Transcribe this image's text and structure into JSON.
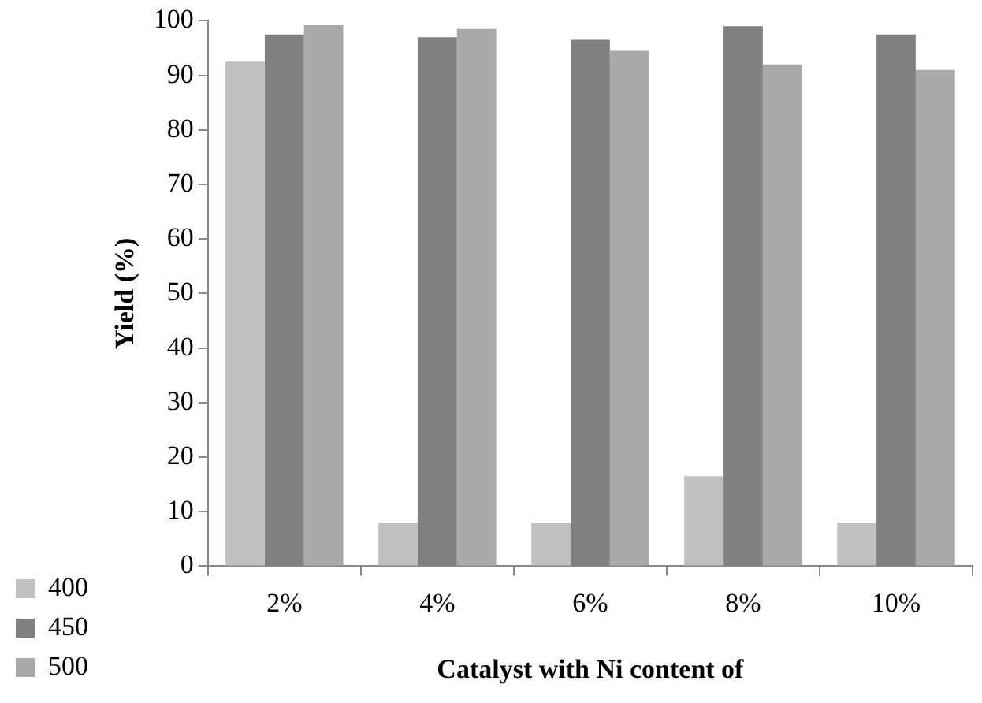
{
  "chart_data": {
    "type": "bar",
    "xlabel": "Catalyst with Ni content of",
    "ylabel": "Yield (%)",
    "categories": [
      "2%",
      "4%",
      "6%",
      "8%",
      "10%"
    ],
    "series": [
      {
        "name": "400",
        "color": "#c0c0c0",
        "values": [
          92.5,
          8,
          8,
          16.5,
          8
        ]
      },
      {
        "name": "450",
        "color": "#808080",
        "values": [
          97.5,
          97,
          96.5,
          99,
          97.5
        ]
      },
      {
        "name": "500",
        "color": "#a9a9a9",
        "values": [
          99.2,
          98.5,
          94.5,
          92,
          91
        ]
      }
    ],
    "ylim": [
      0,
      100
    ],
    "yticks": [
      0,
      10,
      20,
      30,
      40,
      50,
      60,
      70,
      80,
      90,
      100
    ],
    "grid": false,
    "legend": "bottom left"
  }
}
